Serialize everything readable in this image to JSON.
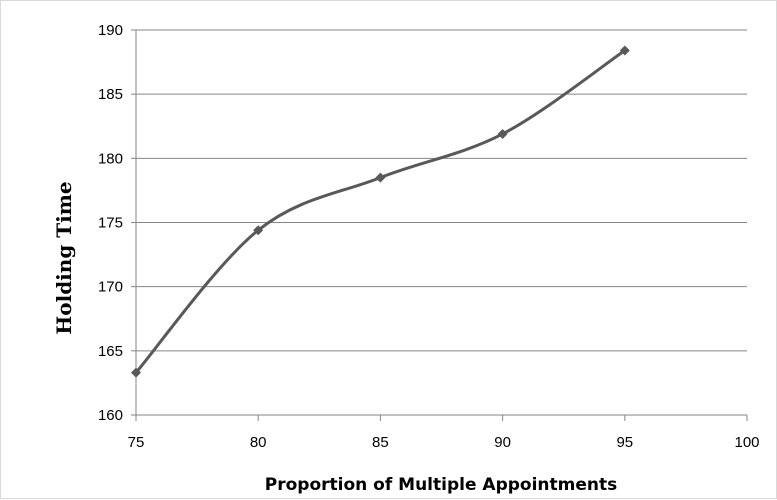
{
  "chart_data": {
    "type": "line",
    "title": "",
    "xlabel": "Proportion of Multiple Appointments",
    "ylabel": "Holding Time",
    "xlim": [
      75,
      100
    ],
    "ylim": [
      160,
      190
    ],
    "xticks": [
      75,
      80,
      85,
      90,
      95,
      100
    ],
    "yticks": [
      160,
      165,
      170,
      175,
      180,
      185,
      190
    ],
    "grid": "horizontal",
    "series": [
      {
        "x": [
          75,
          80,
          85,
          90,
          95
        ],
        "y": [
          163.3,
          174.4,
          178.5,
          181.9,
          188.4
        ],
        "color": "#595959",
        "marker": "diamond",
        "smooth": true
      }
    ]
  }
}
